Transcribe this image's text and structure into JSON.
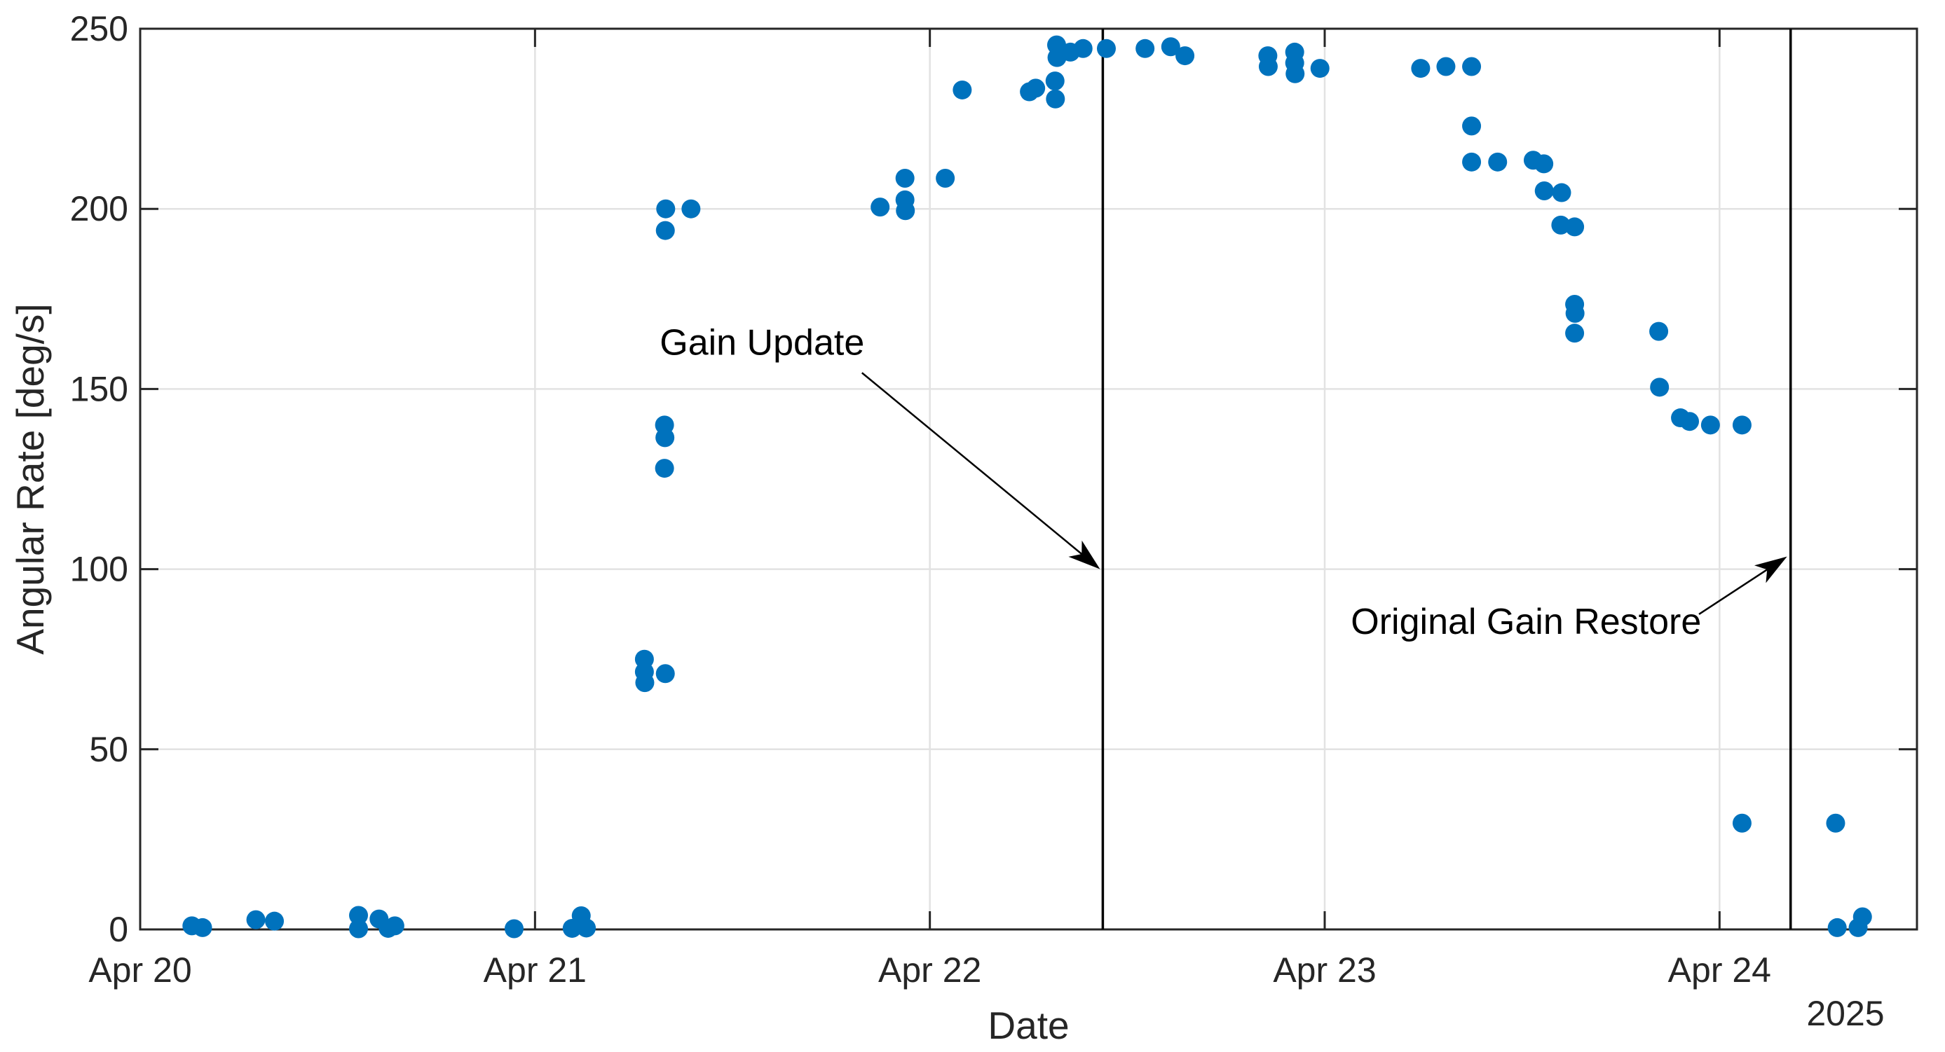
{
  "figure": {
    "background": "#ffffff"
  },
  "chart_data": {
    "type": "scatter",
    "title": "",
    "xlabel": "Date",
    "ylabel": "Angular Rate [deg/s]",
    "year_label": "2025",
    "x_axis_unit": "days after Apr 20 2025 00:00",
    "xlim": [
      0,
      4.5
    ],
    "ylim": [
      0,
      250
    ],
    "x_ticks": [
      {
        "t": 0,
        "label": "Apr 20"
      },
      {
        "t": 1,
        "label": "Apr 21"
      },
      {
        "t": 2,
        "label": "Apr 22"
      },
      {
        "t": 3,
        "label": "Apr 23"
      },
      {
        "t": 4,
        "label": "Apr 24"
      }
    ],
    "y_ticks": [
      0,
      50,
      100,
      150,
      200,
      250
    ],
    "grid": {
      "horizontal": true,
      "vertical": true
    },
    "legend": null,
    "colors": {
      "marker": "#0072BD",
      "axis": "#262626",
      "grid": "#E2E2E2",
      "event_line": "#000000",
      "annotation": "#000000"
    },
    "points": [
      [
        0.131,
        1.0
      ],
      [
        0.158,
        0.5
      ],
      [
        0.293,
        2.7
      ],
      [
        0.34,
        2.3
      ],
      [
        0.553,
        3.9
      ],
      [
        0.553,
        0.2
      ],
      [
        0.605,
        2.9
      ],
      [
        0.628,
        0.3
      ],
      [
        0.645,
        1.0
      ],
      [
        0.947,
        0.2
      ],
      [
        1.094,
        0.3
      ],
      [
        1.117,
        3.8
      ],
      [
        1.13,
        0.4
      ],
      [
        1.277,
        75.0
      ],
      [
        1.277,
        71.5
      ],
      [
        1.278,
        68.5
      ],
      [
        1.33,
        71.0
      ],
      [
        1.328,
        140.0
      ],
      [
        1.329,
        136.5
      ],
      [
        1.328,
        128.0
      ],
      [
        1.331,
        200.0
      ],
      [
        1.33,
        194.0
      ],
      [
        1.395,
        200.0
      ],
      [
        1.874,
        200.5
      ],
      [
        1.937,
        208.5
      ],
      [
        1.937,
        202.5
      ],
      [
        1.938,
        199.5
      ],
      [
        2.039,
        208.5
      ],
      [
        2.082,
        233.0
      ],
      [
        2.252,
        232.5
      ],
      [
        2.268,
        233.5
      ],
      [
        2.317,
        235.5
      ],
      [
        2.318,
        230.5
      ],
      [
        2.321,
        245.5
      ],
      [
        2.322,
        242.0
      ],
      [
        2.356,
        243.5
      ],
      [
        2.388,
        244.5
      ],
      [
        2.447,
        244.5
      ],
      [
        2.545,
        244.5
      ],
      [
        2.61,
        245.0
      ],
      [
        2.646,
        242.5
      ],
      [
        2.856,
        242.5
      ],
      [
        2.857,
        239.5
      ],
      [
        2.924,
        243.5
      ],
      [
        2.924,
        240.5
      ],
      [
        2.925,
        237.5
      ],
      [
        2.988,
        239.0
      ],
      [
        3.243,
        239.0
      ],
      [
        3.307,
        239.5
      ],
      [
        3.372,
        239.5
      ],
      [
        3.372,
        223.0
      ],
      [
        3.372,
        213.0
      ],
      [
        3.438,
        213.0
      ],
      [
        3.528,
        213.5
      ],
      [
        3.555,
        212.5
      ],
      [
        3.556,
        205.0
      ],
      [
        3.6,
        204.5
      ],
      [
        3.598,
        195.5
      ],
      [
        3.633,
        195.0
      ],
      [
        3.633,
        173.5
      ],
      [
        3.634,
        171.0
      ],
      [
        3.633,
        165.5
      ],
      [
        3.846,
        166.0
      ],
      [
        3.848,
        150.5
      ],
      [
        3.901,
        142.0
      ],
      [
        3.924,
        141.0
      ],
      [
        3.977,
        140.0
      ],
      [
        4.057,
        140.0
      ],
      [
        4.057,
        29.5
      ],
      [
        4.294,
        29.5
      ],
      [
        4.298,
        0.5
      ],
      [
        4.351,
        0.5
      ],
      [
        4.362,
        3.5
      ]
    ],
    "event_lines": [
      {
        "name": "gain-update",
        "t": 2.438
      },
      {
        "name": "original-gain-restore",
        "t": 4.18
      }
    ],
    "annotations": [
      {
        "name": "gain-update",
        "text": "Gain Update",
        "text_t": 1.575,
        "text_v": 163.0,
        "arrow_from_t": 1.828,
        "arrow_from_v": 154.5,
        "arrow_to_t": 2.431,
        "arrow_to_v": 100.0
      },
      {
        "name": "original-gain-restore",
        "text": "Original Gain Restore",
        "text_t": 3.51,
        "text_v": 85.5,
        "arrow_from_t": 3.948,
        "arrow_from_v": 87.5,
        "arrow_to_t": 4.171,
        "arrow_to_v": 103.5
      }
    ]
  }
}
